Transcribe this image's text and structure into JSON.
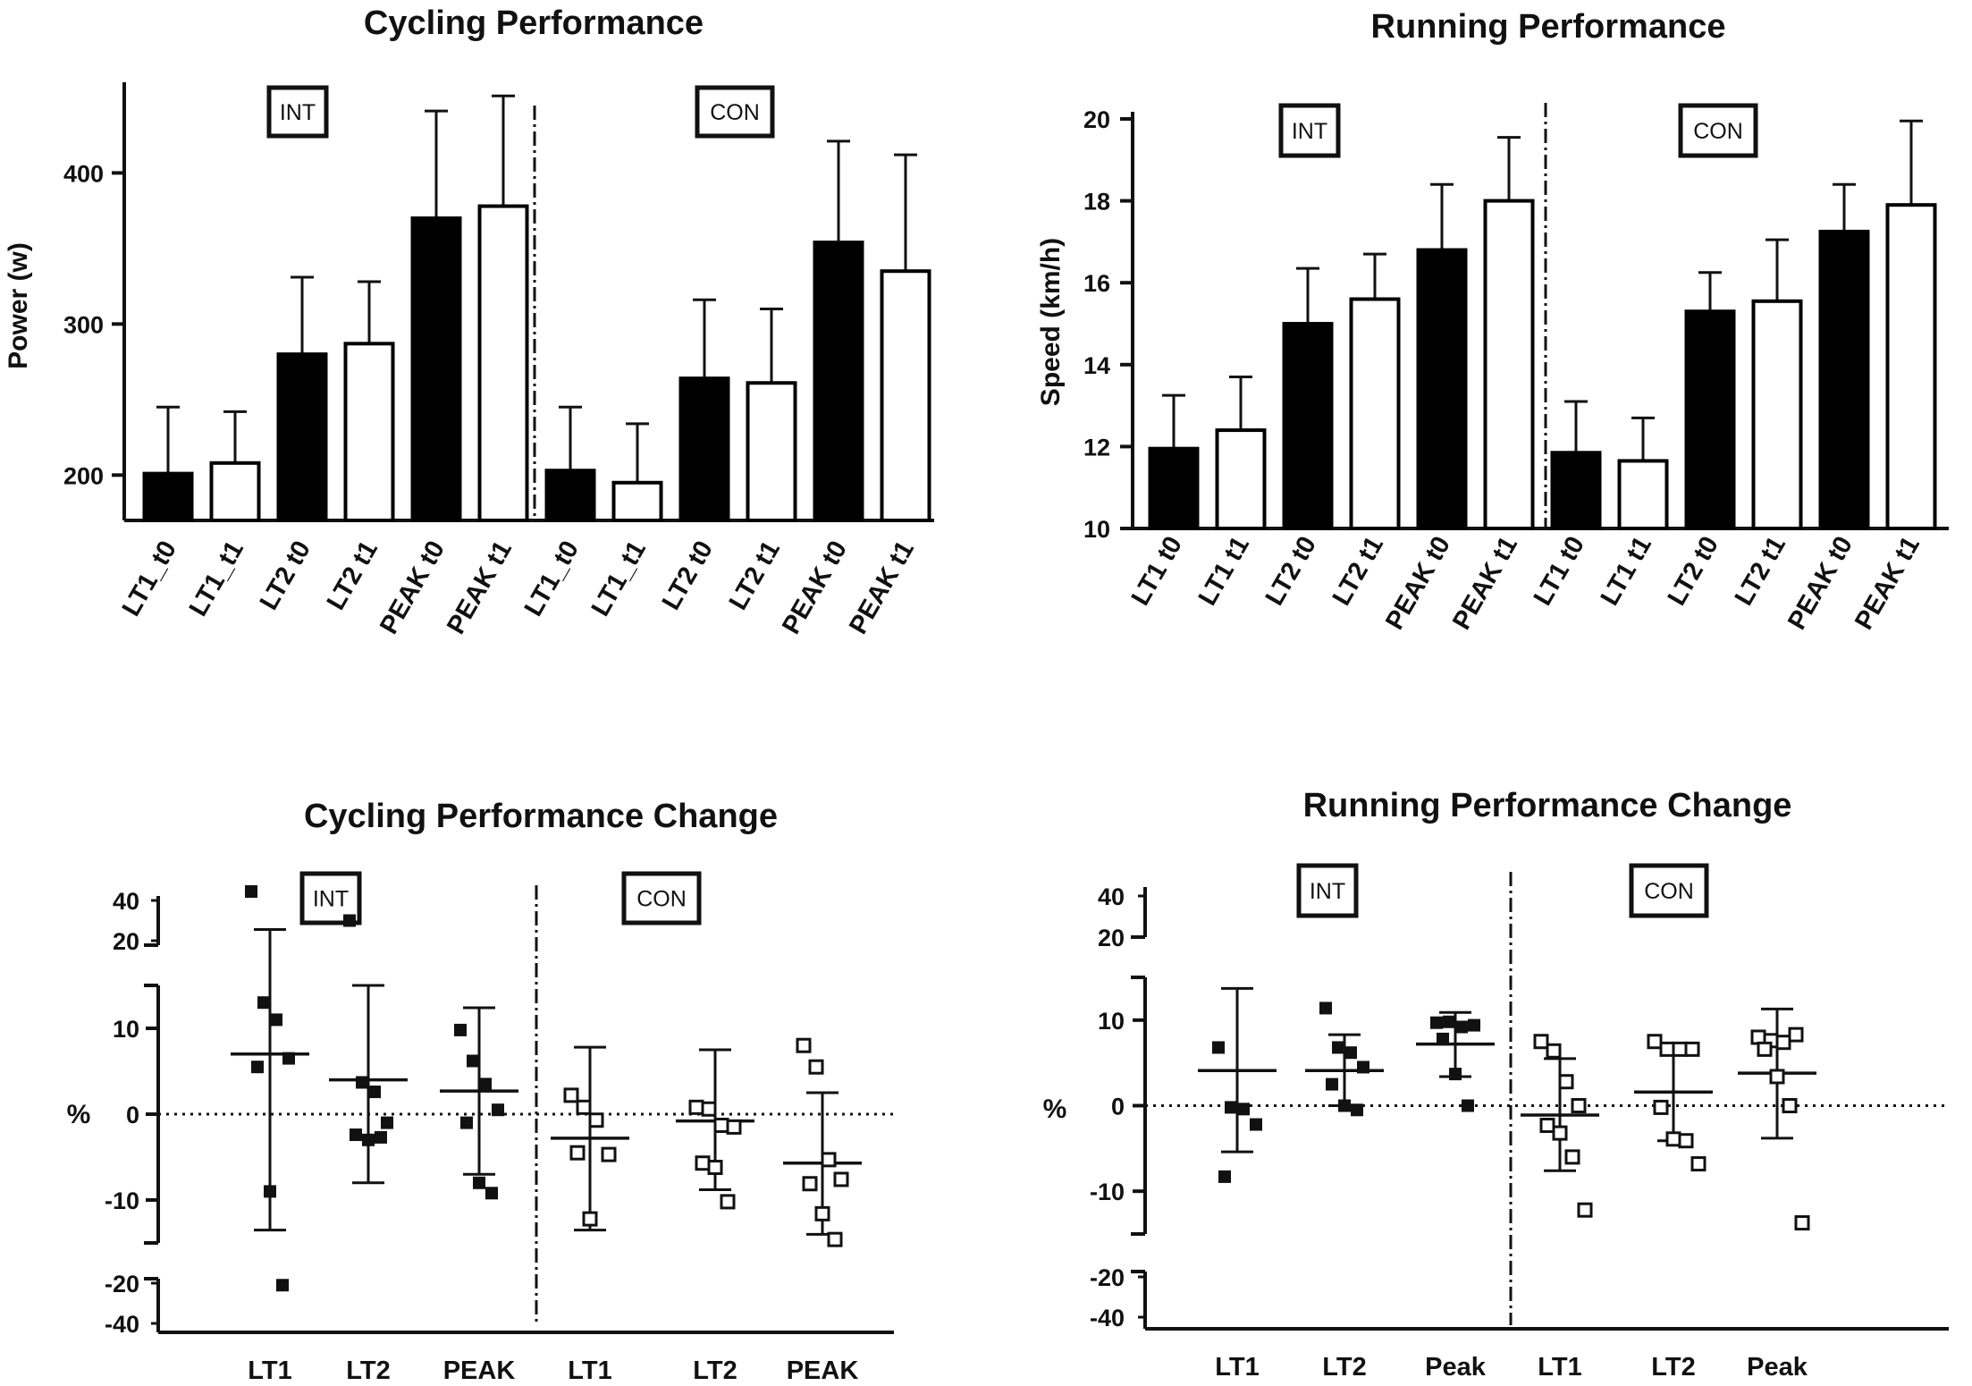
{
  "chart_data": [
    {
      "type": "bar",
      "title": "Cycling Performance",
      "ylabel": "Power (w)",
      "ylim": [
        170,
        460
      ],
      "yticks": [
        "200",
        "300",
        "400"
      ],
      "groups": [
        "INT",
        "CON"
      ],
      "categories": [
        "LT1_t0",
        "LT1_t1",
        "LT2 t0",
        "LT2 t1",
        "PEAK t0",
        "PEAK t1",
        "LT1_t0",
        "LT1_t1",
        "LT2 t0",
        "LT2 t1",
        "PEAK t0",
        "PEAK t1"
      ],
      "values": [
        201,
        208,
        280,
        287,
        370,
        378,
        203,
        195,
        264,
        261,
        354,
        335
      ],
      "errors": [
        44,
        34,
        51,
        41,
        71,
        73,
        42,
        39,
        52,
        49,
        67,
        77
      ],
      "fills": [
        "black",
        "white",
        "black",
        "white",
        "black",
        "white",
        "black",
        "white",
        "black",
        "white",
        "black",
        "white"
      ]
    },
    {
      "type": "bar",
      "title": "Running Performance",
      "ylabel": "Speed (km/h)",
      "ylim": [
        10,
        20
      ],
      "yticks": [
        "10",
        "12",
        "14",
        "16",
        "18",
        "20"
      ],
      "groups": [
        "INT",
        "CON"
      ],
      "categories": [
        "LT1 t0",
        "LT1 t1",
        "LT2 t0",
        "LT2 t1",
        "PEAK t0",
        "PEAK t1",
        "LT1 t0",
        "LT1 t1",
        "LT2 t0",
        "LT2 t1",
        "PEAK t0",
        "PEAK t1"
      ],
      "values": [
        11.95,
        12.4,
        15.0,
        15.6,
        16.8,
        18.0,
        11.85,
        11.65,
        15.3,
        15.55,
        17.25,
        17.9
      ],
      "errors": [
        1.3,
        1.3,
        1.35,
        1.1,
        1.6,
        1.55,
        1.25,
        1.05,
        0.95,
        1.5,
        1.15,
        2.05
      ],
      "fills": [
        "black",
        "white",
        "black",
        "white",
        "black",
        "white",
        "black",
        "white",
        "black",
        "white",
        "black",
        "white"
      ]
    },
    {
      "type": "scatter",
      "title": "Cycling Performance Change",
      "ylabel": "%",
      "ylim": [
        -15,
        15
      ],
      "yticks": [
        "10",
        "0",
        "-10"
      ],
      "upper_ticks": [
        "40",
        "20"
      ],
      "lower_ticks": [
        "-20",
        "-40"
      ],
      "groups": [
        "INT",
        "CON"
      ],
      "categories": [
        "LT1",
        "LT2",
        "PEAK",
        "LT1",
        "LT2",
        "PEAK"
      ],
      "series": [
        {
          "group": "INT",
          "name": "LT1",
          "marker": "filled",
          "mean": 7,
          "sd_low": -13.5,
          "sd_high": 27,
          "points": [
            44,
            13,
            11,
            6.5,
            5.5,
            -9,
            -21
          ]
        },
        {
          "group": "INT",
          "name": "LT2",
          "marker": "filled",
          "mean": 4,
          "sd_low": -8,
          "sd_high": 15,
          "points": [
            31,
            3.7,
            2.6,
            -1,
            -2.4,
            -3,
            -2.7
          ]
        },
        {
          "group": "INT",
          "name": "PEAK",
          "marker": "filled",
          "mean": 2.7,
          "sd_low": -7,
          "sd_high": 12.4,
          "points": [
            9.8,
            6.2,
            3.5,
            0.5,
            -1,
            -8,
            -9.2
          ]
        },
        {
          "group": "CON",
          "name": "LT1",
          "marker": "open",
          "mean": -2.8,
          "sd_low": -13.5,
          "sd_high": 7.8,
          "points": [
            2.2,
            0.8,
            -0.7,
            -4.7,
            -4.5,
            -12.2
          ]
        },
        {
          "group": "CON",
          "name": "LT2",
          "marker": "open",
          "mean": -0.8,
          "sd_low": -8.8,
          "sd_high": 7.5,
          "points": [
            0.8,
            0.6,
            -1.3,
            -1.5,
            -5.7,
            -6.2,
            -10.2
          ]
        },
        {
          "group": "CON",
          "name": "PEAK",
          "marker": "open",
          "mean": -5.7,
          "sd_low": -14,
          "sd_high": 2.5,
          "points": [
            8,
            5.5,
            -5.3,
            -7.6,
            -8.1,
            -11.6,
            -14.6
          ]
        }
      ]
    },
    {
      "type": "scatter",
      "title": "Running Performance Change",
      "ylabel": "%",
      "ylim": [
        -15,
        15
      ],
      "yticks": [
        "10",
        "0",
        "-10"
      ],
      "upper_ticks": [
        "40",
        "20"
      ],
      "lower_ticks": [
        "-20",
        "-40"
      ],
      "groups": [
        "INT",
        "CON"
      ],
      "categories": [
        "LT1",
        "LT2",
        "Peak",
        "LT1",
        "LT2",
        "Peak"
      ],
      "series": [
        {
          "group": "INT",
          "name": "LT1",
          "marker": "filled",
          "mean": 4.1,
          "sd_low": -5.4,
          "sd_high": 13.7,
          "points": [
            6.8,
            -0.2,
            -0.4,
            -2.2,
            -8.3
          ]
        },
        {
          "group": "INT",
          "name": "LT2",
          "marker": "filled",
          "mean": 4.1,
          "sd_low": 0,
          "sd_high": 8.3,
          "points": [
            11.4,
            6.8,
            6.2,
            4.5,
            2.5,
            0,
            -0.5
          ]
        },
        {
          "group": "INT",
          "name": "Peak",
          "marker": "filled",
          "mean": 7.2,
          "sd_low": 3.4,
          "sd_high": 10.9,
          "points": [
            9.7,
            9.8,
            9.2,
            9.4,
            7.8,
            3.7,
            0
          ]
        },
        {
          "group": "CON",
          "name": "LT1",
          "marker": "open",
          "mean": -1.1,
          "sd_low": -7.6,
          "sd_high": 5.5,
          "points": [
            7.5,
            6.4,
            2.8,
            0,
            -2.3,
            -3.2,
            -6,
            -12.2
          ]
        },
        {
          "group": "CON",
          "name": "LT2",
          "marker": "open",
          "mean": 1.6,
          "sd_low": -4.1,
          "sd_high": 7.3,
          "points": [
            7.5,
            6.6,
            6.6,
            6.6,
            -0.2,
            -3.9,
            -4.1,
            -6.8
          ]
        },
        {
          "group": "CON",
          "name": "Peak",
          "marker": "open",
          "mean": 3.8,
          "sd_low": -3.8,
          "sd_high": 11.3,
          "points": [
            8,
            7.6,
            7.4,
            8.3,
            6.6,
            3.4,
            0,
            -13.7
          ]
        }
      ]
    }
  ]
}
